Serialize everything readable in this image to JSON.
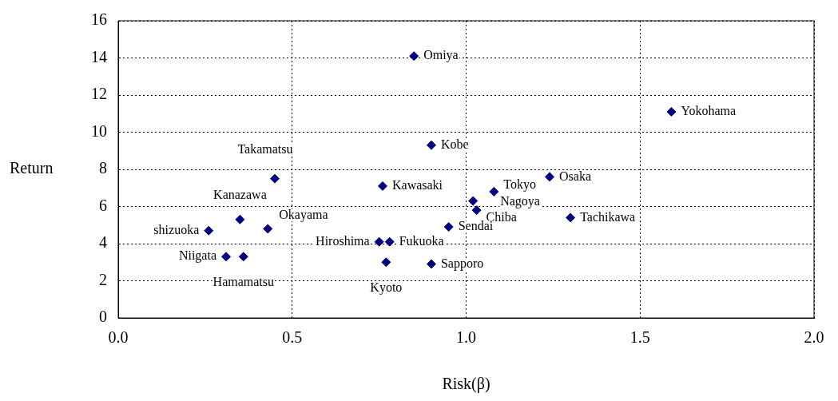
{
  "chart_data": {
    "type": "scatter",
    "xlabel": "Risk(β)",
    "ylabel": "Return",
    "xlim": [
      0,
      2
    ],
    "xticks": [
      {
        "value": 0,
        "label": "0.0"
      },
      0.5,
      {
        "value": 1,
        "label": "1.0"
      },
      1.5,
      {
        "value": 2,
        "label": "2.0"
      }
    ],
    "ylim": [
      0,
      16
    ],
    "yticks": [
      0,
      2,
      4,
      6,
      8,
      10,
      12,
      14,
      16
    ],
    "grid": true,
    "legend": false,
    "marker": "diamond",
    "series": [
      {
        "color": "#000080",
        "x": [
          0.85,
          1.59,
          0.9,
          0.45,
          1.24,
          0.76,
          1.08,
          1.02,
          1.03,
          0.35,
          1.3,
          0.26,
          0.43,
          0.95,
          0.75,
          0.78,
          0.31,
          0.36,
          0.77,
          0.9
        ],
        "values": [
          14.1,
          11.1,
          9.3,
          7.5,
          7.6,
          7.1,
          6.8,
          6.3,
          5.8,
          5.3,
          5.4,
          4.7,
          4.8,
          4.9,
          4.1,
          4.1,
          3.3,
          3.3,
          3.0,
          2.9
        ]
      }
    ],
    "annotations": [
      {
        "text": "Omiya",
        "x": 0.85,
        "y": 14.1
      },
      {
        "text": "Yokohama",
        "x": 1.59,
        "y": 11.1
      },
      {
        "text": "Kobe",
        "x": 0.9,
        "y": 9.3
      },
      {
        "text": "Takamatsu",
        "x": 0.45,
        "y": 7.5
      },
      {
        "text": "Osaka",
        "x": 1.24,
        "y": 7.6
      },
      {
        "text": "Kawasaki",
        "x": 0.76,
        "y": 7.1
      },
      {
        "text": "Tokyo",
        "x": 1.08,
        "y": 6.8
      },
      {
        "text": "Nagoya",
        "x": 1.02,
        "y": 6.3
      },
      {
        "text": "Chiba",
        "x": 1.03,
        "y": 5.8
      },
      {
        "text": "Kanazawa",
        "x": 0.35,
        "y": 5.3
      },
      {
        "text": "Tachikawa",
        "x": 1.3,
        "y": 5.4
      },
      {
        "text": "shizuoka",
        "x": 0.26,
        "y": 4.7
      },
      {
        "text": "Okayama",
        "x": 0.43,
        "y": 4.8
      },
      {
        "text": "Sendai",
        "x": 0.95,
        "y": 4.9
      },
      {
        "text": "Hiroshima",
        "x": 0.75,
        "y": 4.1
      },
      {
        "text": "Fukuoka",
        "x": 0.78,
        "y": 4.1
      },
      {
        "text": "Niigata",
        "x": 0.31,
        "y": 3.3
      },
      {
        "text": "Hamamatsu",
        "x": 0.36,
        "y": 3.3
      },
      {
        "text": "Kyoto",
        "x": 0.77,
        "y": 3.0
      },
      {
        "text": "Sapporo",
        "x": 0.9,
        "y": 2.9
      }
    ]
  }
}
